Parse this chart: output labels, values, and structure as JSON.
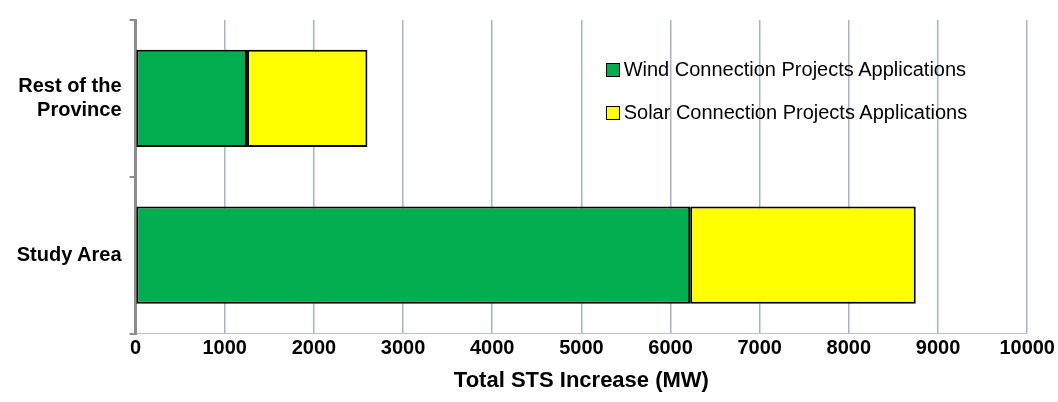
{
  "chart_data": {
    "type": "bar",
    "orientation": "horizontal",
    "stacked": true,
    "xlabel": "Total STS Increase (MW)",
    "categories": [
      "Rest of the Province",
      "Study Area"
    ],
    "series": [
      {
        "name": "Wind Connection Projects Applications",
        "color": "#00ad4f",
        "values": [
          1250,
          6220
        ]
      },
      {
        "name": "Solar Connection Projects Applications",
        "color": "#ffff00",
        "values": [
          1350,
          2530
        ]
      }
    ],
    "xlim": [
      0,
      10000
    ],
    "xticks": [
      0,
      1000,
      2000,
      3000,
      4000,
      5000,
      6000,
      7000,
      8000,
      9000,
      10000
    ],
    "grid": "x",
    "legend": "top right"
  }
}
